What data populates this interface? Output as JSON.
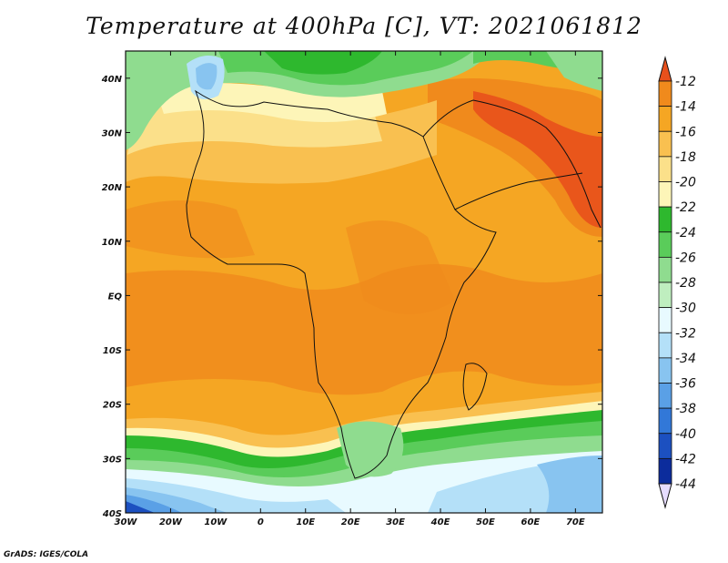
{
  "title": "Temperature at 400hPa [C], VT: 2021061812",
  "credit": "GrADS: IGES/COLA",
  "map": {
    "lon_range": [
      -30,
      76
    ],
    "lat_range": [
      -40,
      45
    ],
    "lon_ticks": [
      {
        "value": -30,
        "label": "30W"
      },
      {
        "value": -20,
        "label": "20W"
      },
      {
        "value": -10,
        "label": "10W"
      },
      {
        "value": 0,
        "label": "0"
      },
      {
        "value": 10,
        "label": "10E"
      },
      {
        "value": 20,
        "label": "20E"
      },
      {
        "value": 30,
        "label": "30E"
      },
      {
        "value": 40,
        "label": "40E"
      },
      {
        "value": 50,
        "label": "50E"
      },
      {
        "value": 60,
        "label": "60E"
      },
      {
        "value": 70,
        "label": "70E"
      }
    ],
    "lat_ticks": [
      {
        "value": 40,
        "label": "40N"
      },
      {
        "value": 30,
        "label": "30N"
      },
      {
        "value": 20,
        "label": "20N"
      },
      {
        "value": 10,
        "label": "10N"
      },
      {
        "value": 0,
        "label": "EQ"
      },
      {
        "value": -10,
        "label": "10S"
      },
      {
        "value": -20,
        "label": "20S"
      },
      {
        "value": -30,
        "label": "30S"
      },
      {
        "value": -40,
        "label": "40S"
      }
    ]
  },
  "colorbar": {
    "levels": [
      -12,
      -14,
      -16,
      -18,
      -20,
      -22,
      -24,
      -26,
      -28,
      -30,
      -32,
      -34,
      -36,
      -38,
      -40,
      -42,
      -44
    ],
    "colors": [
      "#e8501c",
      "#f08a1c",
      "#f5a623",
      "#f9c050",
      "#fbe08a",
      "#fdf5b8",
      "#2eb82e",
      "#5acc5a",
      "#8fdc8f",
      "#bfeebf",
      "#e8faff",
      "#b4e0f8",
      "#88c4f0",
      "#5aa0e6",
      "#3278d8",
      "#1c50c0",
      "#0c2c9c",
      "#06105a"
    ],
    "upper_color": "#e8501c",
    "lower_color": "#e6dcff"
  }
}
